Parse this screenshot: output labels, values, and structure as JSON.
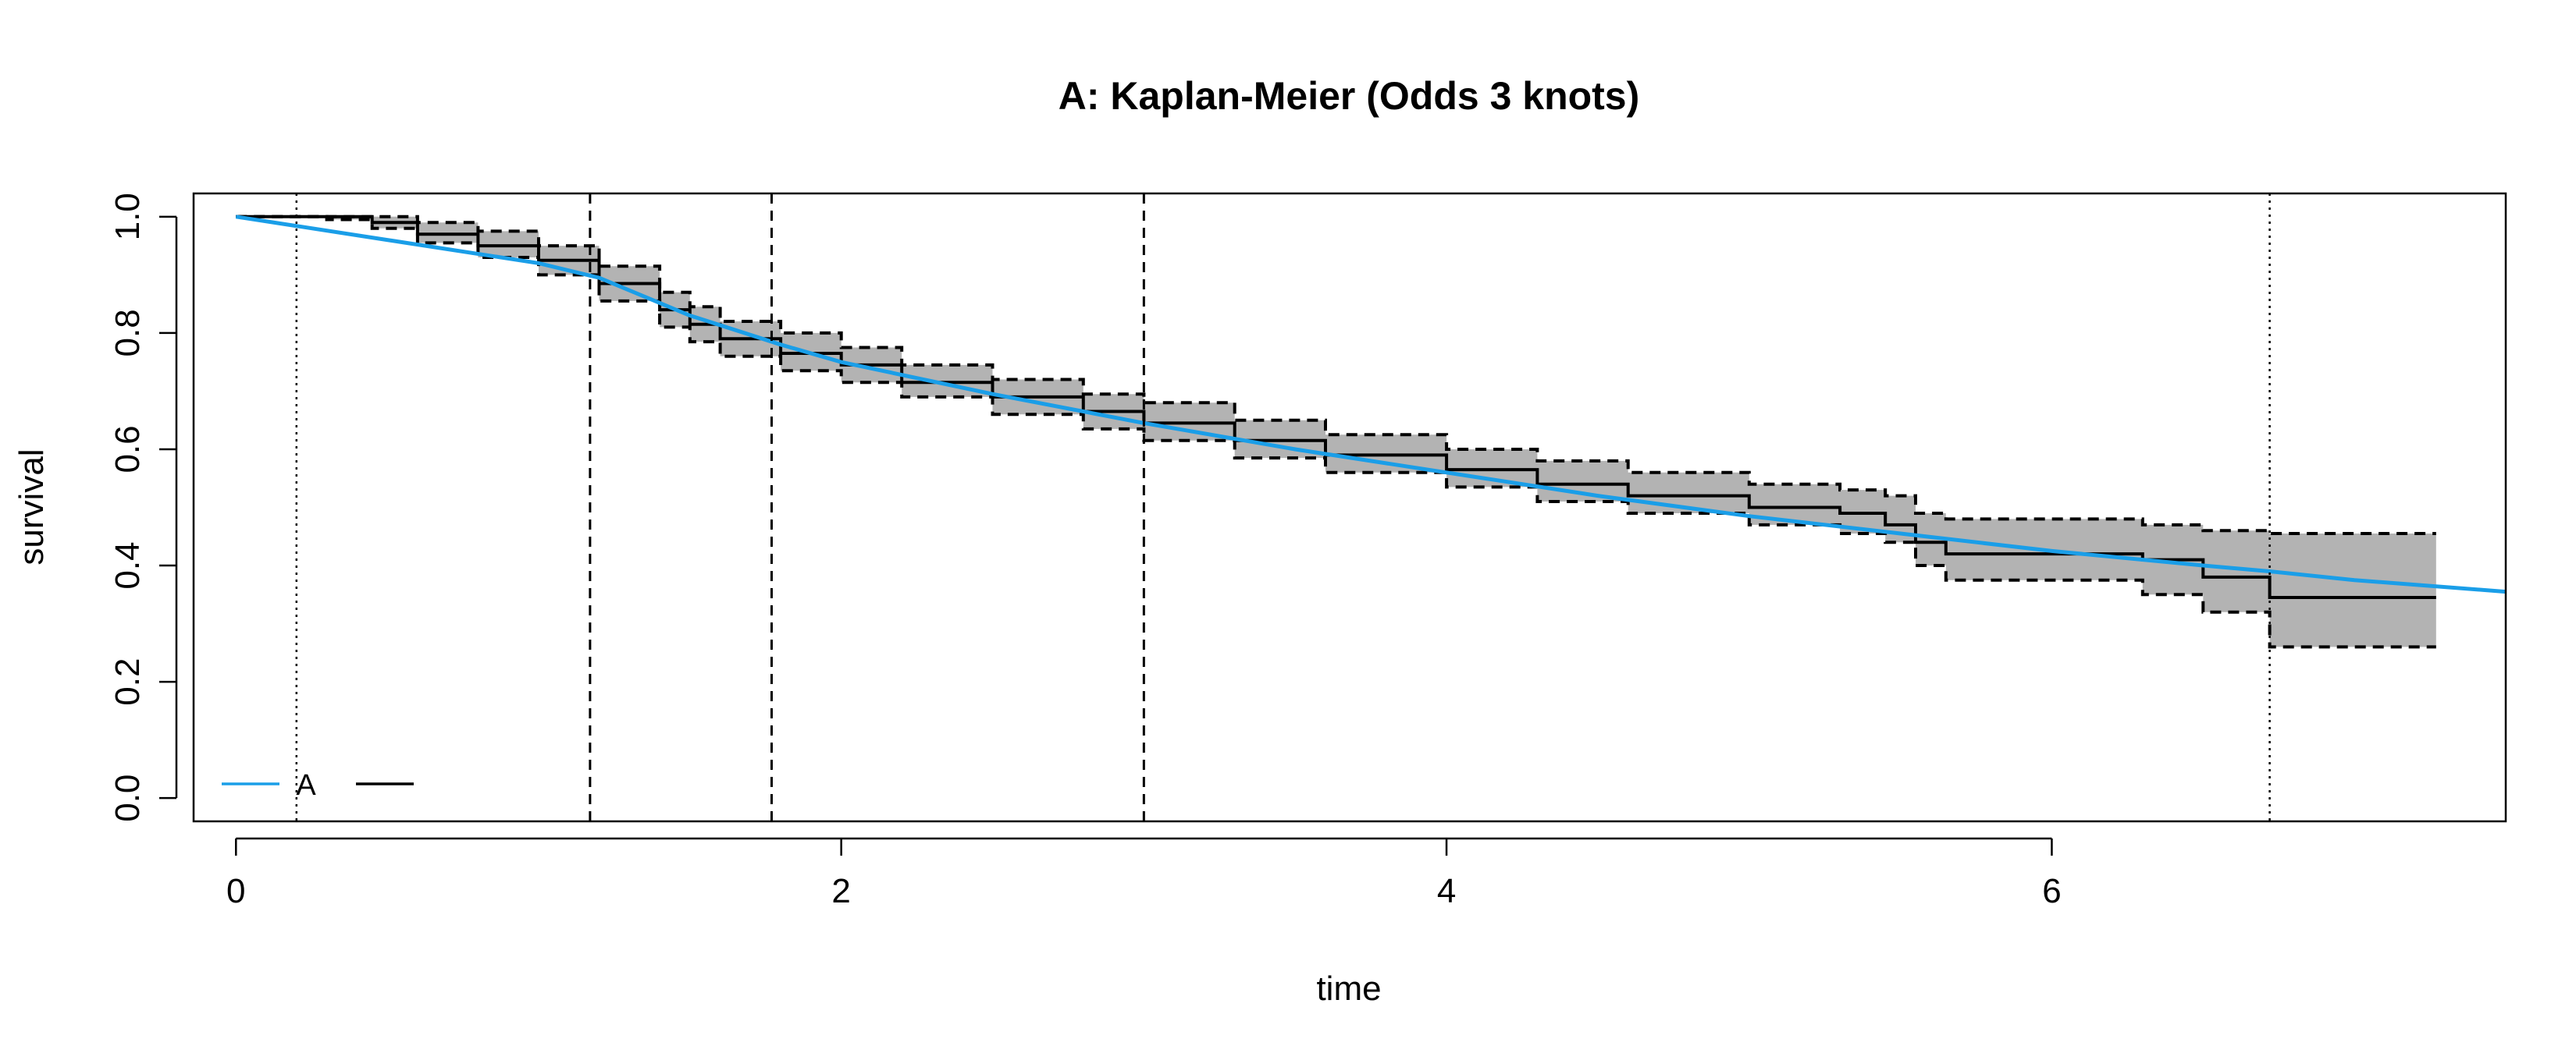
{
  "chart_data": {
    "type": "line",
    "title": "A: Kaplan-Meier (Odds 3 knots)",
    "xlabel": "time",
    "ylabel": "survival",
    "xlim": [
      -0.14,
      7.5
    ],
    "ylim": [
      -0.04,
      1.04
    ],
    "x_ticks": [
      0,
      2,
      4,
      6
    ],
    "y_ticks": [
      0.0,
      0.2,
      0.4,
      0.6,
      0.8,
      1.0
    ],
    "grid": false,
    "legend_position": "bottom-left",
    "legend": [
      {
        "label": "A",
        "color": "#1a9ee8"
      }
    ],
    "colors": {
      "model": "#1a9ee8",
      "km": "#000000",
      "ci_fill": "#b3b3b3"
    },
    "boundary_knots": [
      0.2,
      6.72
    ],
    "interior_knots": [
      1.17,
      1.77,
      3.0
    ],
    "series": [
      {
        "name": "A",
        "style": "model",
        "x": [
          0,
          0.5,
          1.0,
          1.2,
          1.5,
          1.8,
          2.0,
          2.5,
          3.0,
          3.5,
          4.0,
          4.5,
          5.0,
          5.5,
          6.0,
          6.5,
          6.72,
          7.0,
          7.5
        ],
        "y": [
          1.0,
          0.96,
          0.92,
          0.895,
          0.83,
          0.78,
          0.75,
          0.695,
          0.645,
          0.6,
          0.56,
          0.52,
          0.485,
          0.455,
          0.425,
          0.4,
          0.39,
          0.375,
          0.355
        ]
      },
      {
        "style": "km-step",
        "x": [
          0,
          0.3,
          0.45,
          0.6,
          0.8,
          1.0,
          1.2,
          1.4,
          1.5,
          1.6,
          1.8,
          2.0,
          2.2,
          2.5,
          2.8,
          3.0,
          3.3,
          3.6,
          4.0,
          4.3,
          4.6,
          5.0,
          5.3,
          5.45,
          5.55,
          5.65,
          6.0,
          6.3,
          6.5,
          6.72,
          7.27
        ],
        "y": [
          1.0,
          1.0,
          0.99,
          0.97,
          0.95,
          0.925,
          0.885,
          0.84,
          0.815,
          0.79,
          0.765,
          0.745,
          0.715,
          0.69,
          0.665,
          0.645,
          0.615,
          0.59,
          0.565,
          0.54,
          0.52,
          0.5,
          0.49,
          0.47,
          0.44,
          0.42,
          0.42,
          0.41,
          0.38,
          0.345,
          0.345
        ]
      },
      {
        "style": "ci-upper",
        "x": [
          0,
          0.3,
          0.45,
          0.6,
          0.8,
          1.0,
          1.2,
          1.4,
          1.5,
          1.6,
          1.8,
          2.0,
          2.2,
          2.5,
          2.8,
          3.0,
          3.3,
          3.6,
          4.0,
          4.3,
          4.6,
          5.0,
          5.3,
          5.45,
          5.55,
          5.65,
          6.0,
          6.3,
          6.5,
          6.72,
          7.27
        ],
        "y": [
          1.0,
          1.0,
          1.0,
          0.99,
          0.975,
          0.95,
          0.915,
          0.87,
          0.845,
          0.82,
          0.8,
          0.775,
          0.745,
          0.72,
          0.695,
          0.68,
          0.65,
          0.625,
          0.6,
          0.58,
          0.56,
          0.54,
          0.53,
          0.52,
          0.49,
          0.48,
          0.48,
          0.47,
          0.46,
          0.455,
          0.455
        ]
      },
      {
        "style": "ci-lower",
        "x": [
          0,
          0.3,
          0.45,
          0.6,
          0.8,
          1.0,
          1.2,
          1.4,
          1.5,
          1.6,
          1.8,
          2.0,
          2.2,
          2.5,
          2.8,
          3.0,
          3.3,
          3.6,
          4.0,
          4.3,
          4.6,
          5.0,
          5.3,
          5.45,
          5.55,
          5.65,
          6.0,
          6.3,
          6.5,
          6.72,
          7.27
        ],
        "y": [
          1.0,
          0.995,
          0.98,
          0.955,
          0.93,
          0.9,
          0.855,
          0.81,
          0.785,
          0.76,
          0.735,
          0.715,
          0.69,
          0.66,
          0.635,
          0.615,
          0.585,
          0.56,
          0.535,
          0.51,
          0.49,
          0.47,
          0.455,
          0.44,
          0.4,
          0.375,
          0.375,
          0.35,
          0.32,
          0.26,
          0.26
        ]
      }
    ]
  }
}
